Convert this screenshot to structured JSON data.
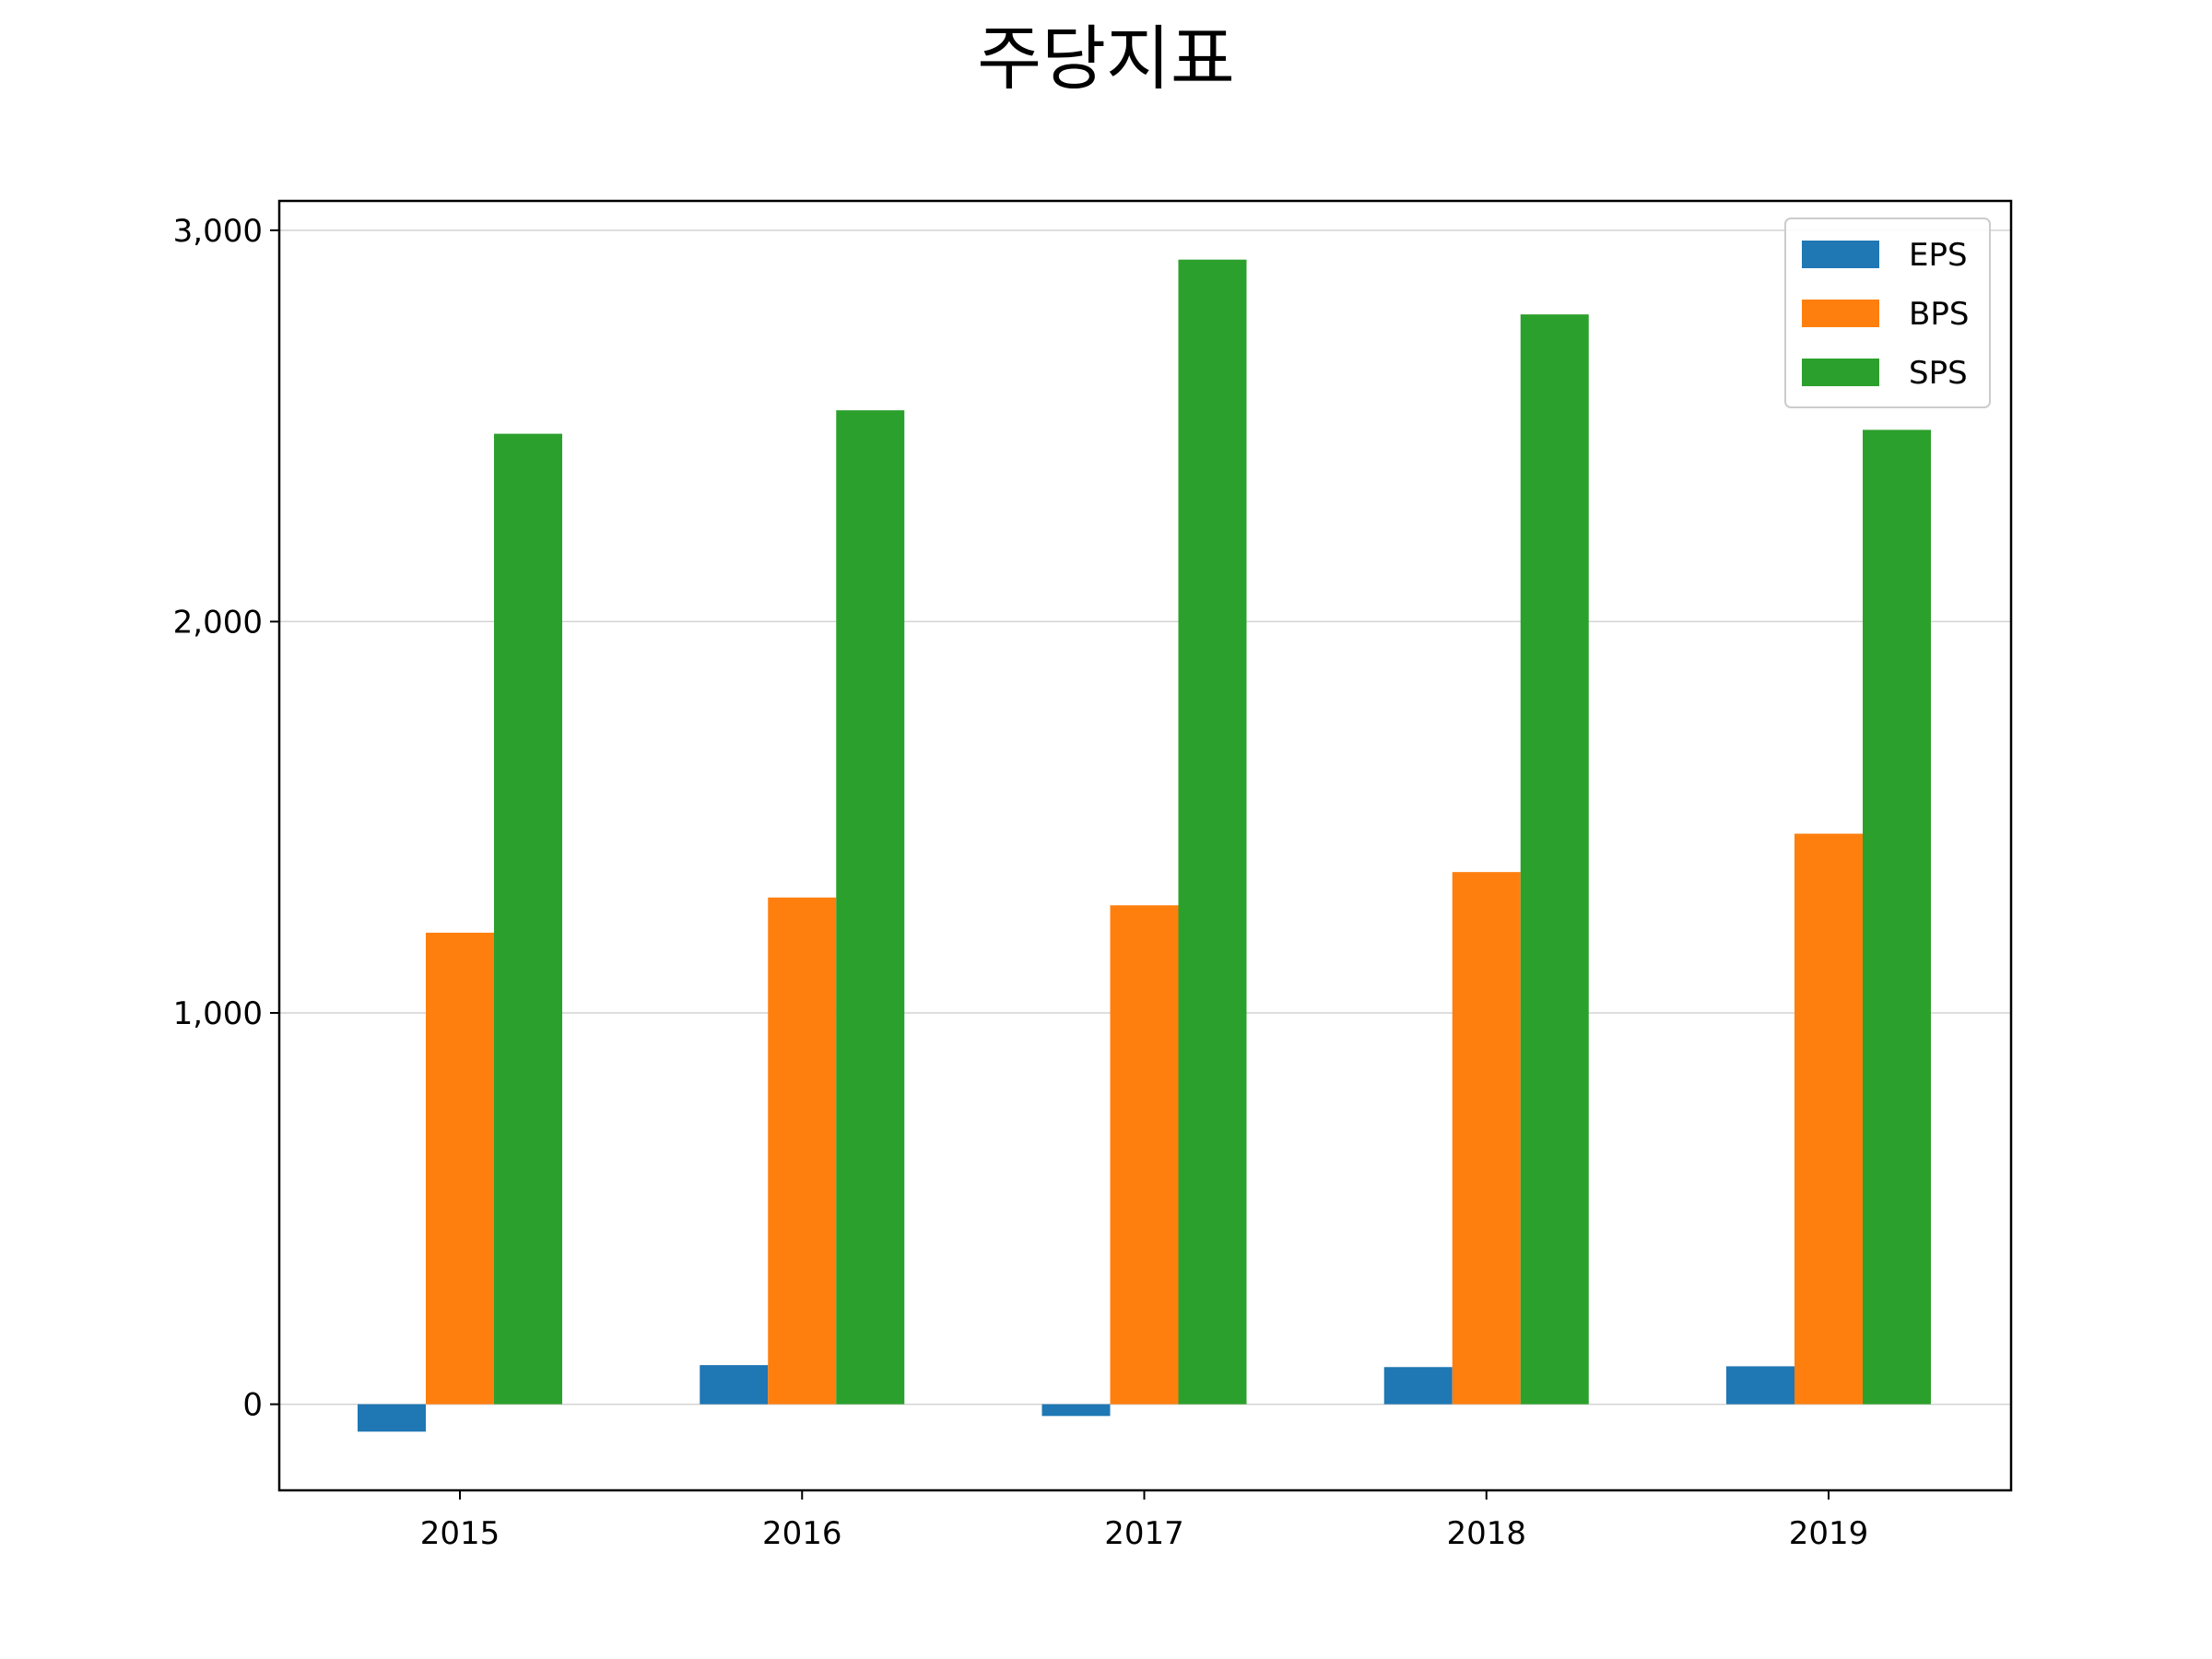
{
  "chart_data": {
    "type": "bar",
    "title": "주당지표",
    "xlabel": "",
    "ylabel": "",
    "categories": [
      "2015",
      "2016",
      "2017",
      "2018",
      "2019"
    ],
    "series": [
      {
        "name": "EPS",
        "color": "#1f77b4",
        "values": [
          -70,
          100,
          -30,
          95,
          97
        ]
      },
      {
        "name": "BPS",
        "color": "#ff7f0e",
        "values": [
          1205,
          1295,
          1275,
          1360,
          1458
        ]
      },
      {
        "name": "SPS",
        "color": "#2ca02c",
        "values": [
          2480,
          2540,
          2925,
          2785,
          2490
        ]
      }
    ],
    "ylim": [
      -220,
      3075
    ],
    "yticks": [
      0,
      1000,
      2000,
      3000
    ],
    "ytick_labels": [
      "0",
      "1,000",
      "2,000",
      "3,000"
    ],
    "grid": "y",
    "legend": "top-right"
  }
}
